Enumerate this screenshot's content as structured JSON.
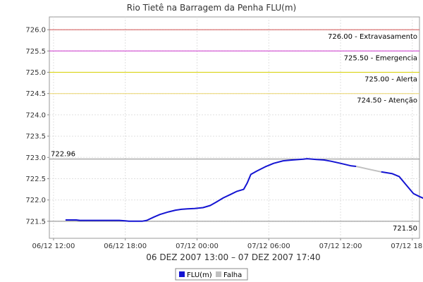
{
  "chart_data": {
    "type": "line",
    "title": "Rio Tietê na Barragem da Penha FLU(m)",
    "subtitle": "06 DEZ 2007 13:00 – 07 DEZ 2007 17:40",
    "xlabel": "",
    "ylabel": "",
    "ylim": [
      721.1,
      726.3
    ],
    "y_ticks": [
      "721.5",
      "722.0",
      "722.5",
      "723.0",
      "723.5",
      "724.0",
      "724.5",
      "725.0",
      "725.5",
      "726.0"
    ],
    "x_ticks": [
      "06/12 12:00",
      "06/12 18:00",
      "07/12 00:00",
      "07/12 06:00",
      "07/12 12:00",
      "07/12 18:00"
    ],
    "x_tick_hours": [
      0,
      6,
      12,
      18,
      24,
      30
    ],
    "xlim_hours": [
      -0.35,
      30.6
    ],
    "grid": true,
    "legend_placement": "bottom-center",
    "reference_lines": [
      {
        "value": 726.0,
        "label": "726.00 - Extravasamento",
        "color": "#d05050"
      },
      {
        "value": 725.5,
        "label": "725.50 - Emergencia",
        "color": "#cc33cc"
      },
      {
        "value": 725.0,
        "label": "725.00 - Alerta",
        "color": "#d6d000"
      },
      {
        "value": 724.5,
        "label": "724.50 - Atenção",
        "color": "#ead56e"
      }
    ],
    "max_marker": {
      "value": 722.96,
      "label": "722.96",
      "color": "#888888"
    },
    "min_marker": {
      "value": 721.5,
      "label": "721.50",
      "color": "#888888"
    },
    "series": [
      {
        "name": "FLU(m)",
        "color": "#1414d2",
        "segments": [
          [
            [
              1.0,
              721.53
            ],
            [
              1.9,
              721.53
            ],
            [
              2.2,
              721.52
            ],
            [
              3.0,
              721.52
            ],
            [
              4.5,
              721.52
            ],
            [
              5.5,
              721.52
            ],
            [
              6.0,
              721.51
            ],
            [
              6.3,
              721.5
            ],
            [
              7.4,
              721.5
            ],
            [
              7.8,
              721.52
            ],
            [
              8.4,
              721.6
            ],
            [
              8.9,
              721.66
            ],
            [
              9.6,
              721.72
            ],
            [
              10.2,
              721.76
            ],
            [
              10.7,
              721.78
            ],
            [
              11.2,
              721.79
            ],
            [
              11.8,
              721.8
            ],
            [
              12.5,
              721.82
            ],
            [
              13.1,
              721.87
            ],
            [
              13.6,
              721.95
            ],
            [
              14.2,
              722.05
            ],
            [
              14.8,
              722.13
            ],
            [
              15.3,
              722.2
            ],
            [
              15.9,
              722.25
            ],
            [
              16.2,
              722.4
            ],
            [
              16.5,
              722.6
            ],
            [
              17.0,
              722.68
            ],
            [
              17.7,
              722.78
            ],
            [
              18.4,
              722.86
            ],
            [
              19.2,
              722.92
            ],
            [
              20.0,
              722.94
            ],
            [
              20.9,
              722.96
            ],
            [
              21.2,
              722.97
            ],
            [
              22.0,
              722.95
            ],
            [
              22.6,
              722.94
            ],
            [
              23.2,
              722.91
            ],
            [
              24.0,
              722.86
            ],
            [
              24.9,
              722.8
            ],
            [
              25.3,
              722.79
            ]
          ],
          [
            [
              27.4,
              722.66
            ],
            [
              28.3,
              722.62
            ],
            [
              28.9,
              722.55
            ],
            [
              29.5,
              722.35
            ],
            [
              30.1,
              722.15
            ],
            [
              30.6,
              722.08
            ],
            [
              31.0,
              722.03
            ],
            [
              31.3,
              722.0
            ]
          ]
        ]
      },
      {
        "name": "Falha",
        "color": "#c0c0c0",
        "segments": [
          [
            [
              25.3,
              722.79
            ],
            [
              26.4,
              722.72
            ],
            [
              27.4,
              722.66
            ]
          ]
        ]
      }
    ]
  }
}
